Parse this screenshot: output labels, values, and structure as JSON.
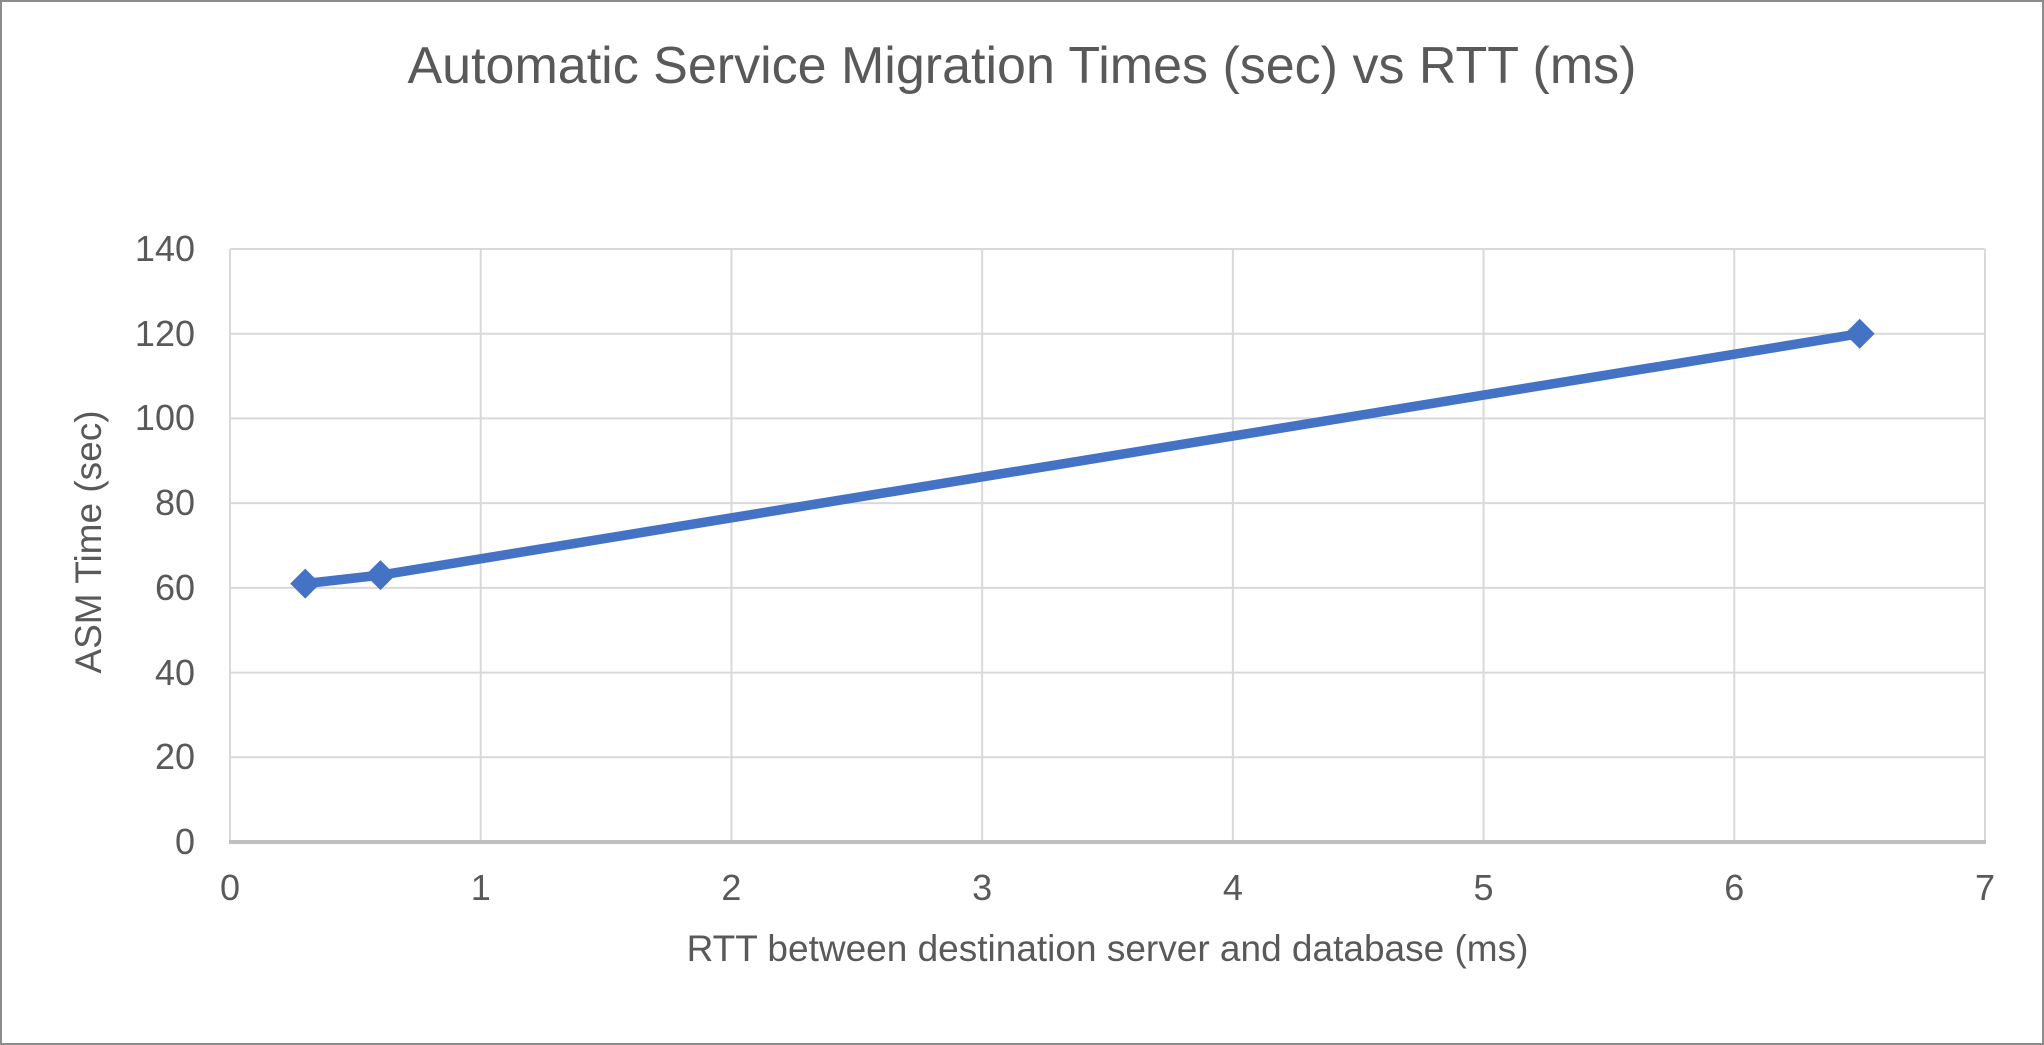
{
  "chart_data": {
    "type": "line",
    "title": "Automatic Service Migration Times (sec) vs RTT (ms)",
    "xlabel": "RTT between destination server and database (ms)",
    "ylabel": "ASM Time (sec)",
    "x": [
      0.3,
      0.6,
      6.5
    ],
    "series": [
      {
        "values": [
          61,
          63,
          120
        ]
      }
    ],
    "xlim": [
      0,
      7
    ],
    "ylim": [
      0,
      140
    ],
    "x_ticks": [
      0,
      1,
      2,
      3,
      4,
      5,
      6,
      7
    ],
    "y_ticks": [
      0,
      20,
      40,
      60,
      80,
      100,
      120,
      140
    ],
    "grid": true,
    "legend": false,
    "marker": "diamond",
    "colors": {
      "series_line": "#4472C4",
      "gridline": "#D9D9D9",
      "axis_line": "#BFBFBF",
      "text": "#595959",
      "frame_border": "#8C8C8C",
      "background": "#FFFFFF"
    }
  }
}
